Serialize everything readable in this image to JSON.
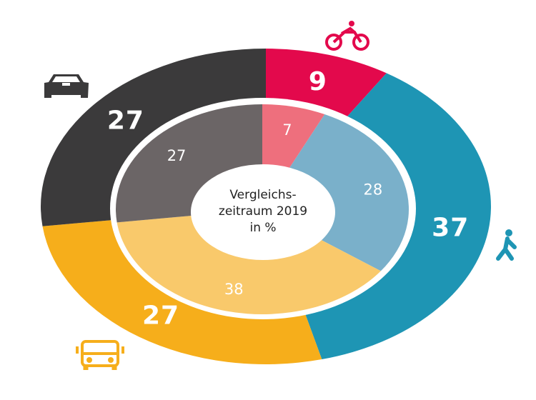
{
  "chart_data": {
    "type": "pie",
    "variant": "double-donut",
    "start": "top",
    "direction": "clockwise",
    "center_label": [
      "Vergleichs-",
      "zeitraum 2019",
      "in %"
    ],
    "categories": [
      "bicycle",
      "walking",
      "bus",
      "car"
    ],
    "icons": [
      "bicycle-icon",
      "pedestrian-icon",
      "bus-icon",
      "car-icon"
    ],
    "series": [
      {
        "ring": "outer",
        "values": [
          9,
          37,
          27,
          27
        ],
        "colors": [
          "#e3094c",
          "#1e95b4",
          "#f6ae1b",
          "#3b3a3b"
        ]
      },
      {
        "ring": "inner",
        "name": "Vergleichszeitraum 2019",
        "values": [
          7,
          28,
          38,
          27
        ],
        "colors": [
          "#ee6f7d",
          "#7ab0ca",
          "#f9c96b",
          "#6b6566"
        ]
      }
    ]
  }
}
